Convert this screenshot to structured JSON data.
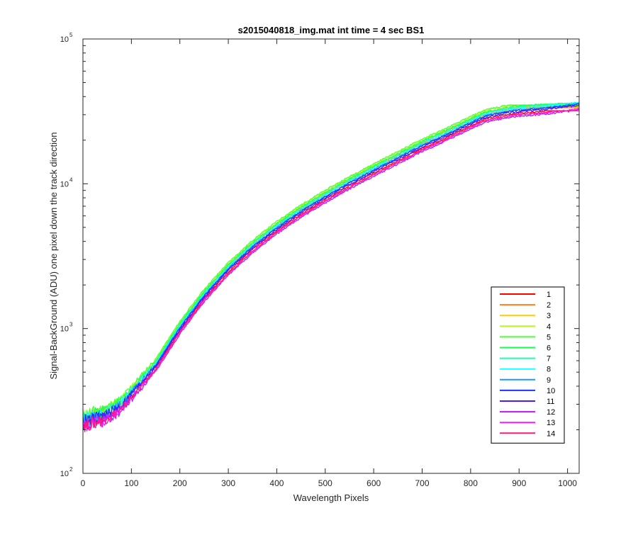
{
  "chart_data": {
    "type": "line",
    "title": "s2015040818_img.mat int time = 4 sec   BS1",
    "xlabel": "Wavelength Pixels",
    "ylabel": "Signal-BackGround (ADU) one pixel down the track direction",
    "xlim": [
      0,
      1024
    ],
    "ylim": [
      100,
      100000
    ],
    "yscale": "log",
    "grid": false,
    "legend_position": "bottom-right",
    "x_ticks": [
      0,
      100,
      200,
      300,
      400,
      500,
      600,
      700,
      800,
      900,
      1000
    ],
    "x_tick_labels": [
      "0",
      "100",
      "200",
      "300",
      "400",
      "500",
      "600",
      "700",
      "800",
      "900",
      "1000"
    ],
    "y_ticks": [
      100,
      1000,
      10000,
      100000
    ],
    "y_tick_labels": [
      {
        "base": "10",
        "exp": "2"
      },
      {
        "base": "10",
        "exp": "3"
      },
      {
        "base": "10",
        "exp": "4"
      },
      {
        "base": "10",
        "exp": "5"
      }
    ],
    "base_x": [
      0,
      20,
      50,
      80,
      100,
      150,
      200,
      250,
      300,
      350,
      400,
      450,
      500,
      550,
      600,
      650,
      700,
      750,
      800,
      830,
      870,
      900,
      950,
      1000,
      1024
    ],
    "base_y": [
      230,
      240,
      260,
      300,
      360,
      560,
      1020,
      1700,
      2600,
      3700,
      5000,
      6500,
      8200,
      10200,
      12500,
      15200,
      18500,
      22000,
      26500,
      29500,
      31500,
      32500,
      33500,
      35000,
      36000
    ],
    "series": [
      {
        "name": "1",
        "color": "#ff0000",
        "factor": 0.95,
        "sat": 32000
      },
      {
        "name": "2",
        "color": "#ff7f1f",
        "factor": 1.02,
        "sat": 33500
      },
      {
        "name": "3",
        "color": "#ffcc00",
        "factor": 1.05,
        "sat": 34000
      },
      {
        "name": "4",
        "color": "#b3ff1a",
        "factor": 1.08,
        "sat": 34500
      },
      {
        "name": "5",
        "color": "#4dff33",
        "factor": 1.1,
        "sat": 35000
      },
      {
        "name": "6",
        "color": "#1aff4d",
        "factor": 1.06,
        "sat": 35500
      },
      {
        "name": "7",
        "color": "#1affb3",
        "factor": 1.04,
        "sat": 36000
      },
      {
        "name": "8",
        "color": "#1affff",
        "factor": 1.02,
        "sat": 36500
      },
      {
        "name": "9",
        "color": "#1a99ff",
        "factor": 1.0,
        "sat": 37000
      },
      {
        "name": "10",
        "color": "#1a33ff",
        "factor": 0.99,
        "sat": 37000
      },
      {
        "name": "11",
        "color": "#4d1aff",
        "factor": 0.97,
        "sat": 36500
      },
      {
        "name": "12",
        "color": "#b31aff",
        "factor": 0.9,
        "sat": 34000
      },
      {
        "name": "13",
        "color": "#ff1aff",
        "factor": 0.92,
        "sat": 33000
      },
      {
        "name": "14",
        "color": "#ff1a80",
        "factor": 0.93,
        "sat": 32000
      }
    ]
  }
}
